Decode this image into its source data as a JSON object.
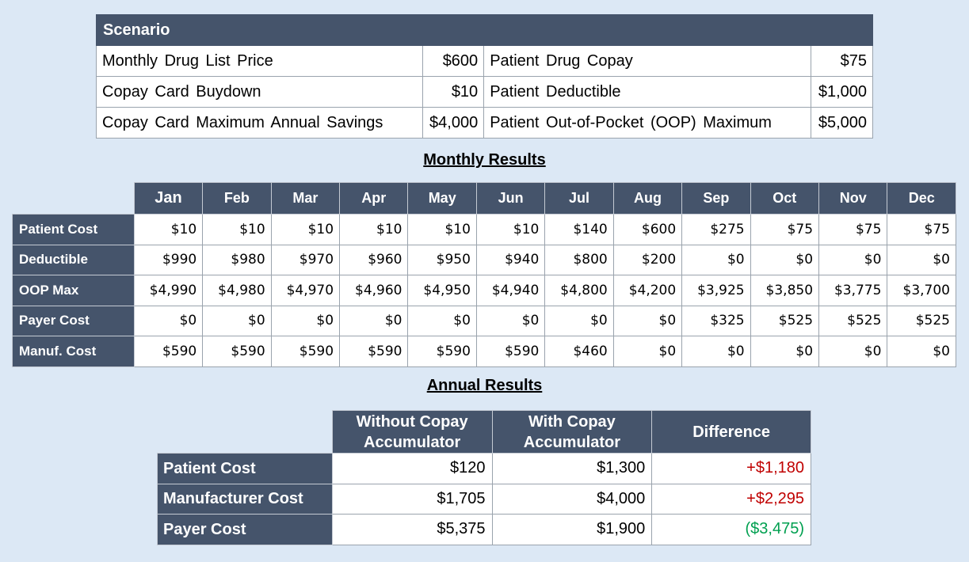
{
  "scenario": {
    "title": "Scenario",
    "rows": [
      {
        "left_label": "Monthly Drug List Price",
        "left_value": "$600",
        "right_label": "Patient Drug Copay",
        "right_value": "$75"
      },
      {
        "left_label": "Copay Card Buydown",
        "left_value": "$10",
        "right_label": "Patient Deductible",
        "right_value": "$1,000"
      },
      {
        "left_label": "Copay Card Maximum Annual Savings",
        "left_value": "$4,000",
        "right_label": "Patient Out-of-Pocket (OOP) Maximum",
        "right_value": "$5,000"
      }
    ]
  },
  "monthly": {
    "title": "Monthly Results",
    "months": [
      "Jan",
      "Feb",
      "Mar",
      "Apr",
      "May",
      "Jun",
      "Jul",
      "Aug",
      "Sep",
      "Oct",
      "Nov",
      "Dec"
    ],
    "rows": [
      {
        "label": "Patient Cost",
        "values": [
          "$10",
          "$10",
          "$10",
          "$10",
          "$10",
          "$10",
          "$140",
          "$600",
          "$275",
          "$75",
          "$75",
          "$75"
        ]
      },
      {
        "label": "Deductible",
        "values": [
          "$990",
          "$980",
          "$970",
          "$960",
          "$950",
          "$940",
          "$800",
          "$200",
          "$0",
          "$0",
          "$0",
          "$0"
        ]
      },
      {
        "label": "OOP Max",
        "values": [
          "$4,990",
          "$4,980",
          "$4,970",
          "$4,960",
          "$4,950",
          "$4,940",
          "$4,800",
          "$4,200",
          "$3,925",
          "$3,850",
          "$3,775",
          "$3,700"
        ]
      },
      {
        "label": "Payer Cost",
        "values": [
          "$0",
          "$0",
          "$0",
          "$0",
          "$0",
          "$0",
          "$0",
          "$0",
          "$325",
          "$525",
          "$525",
          "$525"
        ]
      },
      {
        "label": "Manuf. Cost",
        "values": [
          "$590",
          "$590",
          "$590",
          "$590",
          "$590",
          "$590",
          "$460",
          "$0",
          "$0",
          "$0",
          "$0",
          "$0"
        ]
      }
    ]
  },
  "annual": {
    "title": "Annual Results",
    "columns": [
      {
        "line1": "Without Copay",
        "line2": "Accumulator"
      },
      {
        "line1": "With Copay",
        "line2": "Accumulator"
      },
      {
        "line1": "Difference",
        "line2": ""
      }
    ],
    "rows": [
      {
        "label": "Patient Cost",
        "without": "$120",
        "with": "$1,300",
        "difference": "+$1,180"
      },
      {
        "label": "Manufacturer Cost",
        "without": "$1,705",
        "with": "$4,000",
        "difference": "+$2,295"
      },
      {
        "label": "Payer Cost",
        "without": "$5,375",
        "with": "$1,900",
        "difference": "($3,475)"
      }
    ]
  },
  "colors": {
    "background": "#dce8f5",
    "header_fill": "#45546b",
    "increase_text": "#c00000",
    "decrease_text": "#00a050"
  }
}
